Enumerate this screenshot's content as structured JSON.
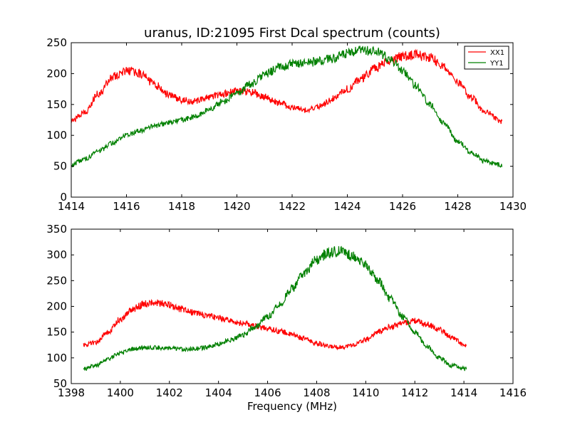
{
  "chart_data": [
    {
      "type": "line",
      "title": "uranus, ID:21095 First Dcal spectrum (counts)",
      "xlabel": "",
      "ylabel": "",
      "xlim": [
        1414,
        1430
      ],
      "ylim": [
        0,
        250
      ],
      "xticks": [
        1414,
        1416,
        1418,
        1420,
        1422,
        1424,
        1426,
        1428,
        1430
      ],
      "yticks": [
        0,
        50,
        100,
        150,
        200,
        250
      ],
      "grid": false,
      "legend": "top-right",
      "series": [
        {
          "name": "XX1",
          "color": "#ff0000",
          "x": [
            1414.0,
            1414.5,
            1415.0,
            1415.5,
            1416.0,
            1416.5,
            1417.0,
            1417.5,
            1418.0,
            1418.5,
            1419.0,
            1419.5,
            1420.0,
            1420.5,
            1421.0,
            1421.5,
            1422.0,
            1422.5,
            1423.0,
            1423.5,
            1424.0,
            1424.5,
            1425.0,
            1425.5,
            1426.0,
            1426.5,
            1427.0,
            1427.5,
            1428.0,
            1428.5,
            1429.0,
            1429.6
          ],
          "values": [
            123,
            138,
            168,
            195,
            205,
            200,
            183,
            167,
            157,
            155,
            162,
            167,
            172,
            170,
            162,
            153,
            145,
            141,
            148,
            160,
            175,
            192,
            208,
            220,
            228,
            230,
            225,
            212,
            185,
            160,
            138,
            122
          ]
        },
        {
          "name": "YY1",
          "color": "#008000",
          "x": [
            1414.0,
            1414.5,
            1415.0,
            1415.5,
            1416.0,
            1416.5,
            1417.0,
            1417.5,
            1418.0,
            1418.5,
            1419.0,
            1419.5,
            1420.0,
            1420.5,
            1421.0,
            1421.5,
            1422.0,
            1422.5,
            1423.0,
            1423.5,
            1424.0,
            1424.5,
            1425.0,
            1425.5,
            1426.0,
            1426.5,
            1427.0,
            1427.5,
            1428.0,
            1428.5,
            1429.0,
            1429.6
          ],
          "values": [
            52,
            62,
            75,
            88,
            100,
            108,
            115,
            120,
            125,
            130,
            142,
            155,
            168,
            183,
            198,
            210,
            215,
            218,
            220,
            225,
            232,
            237,
            236,
            225,
            205,
            180,
            150,
            120,
            90,
            72,
            58,
            52
          ]
        }
      ]
    },
    {
      "type": "line",
      "title": "",
      "xlabel": "Frequency (MHz)",
      "ylabel": "",
      "xlim": [
        1398,
        1416
      ],
      "ylim": [
        50,
        350
      ],
      "xticks": [
        1398,
        1400,
        1402,
        1404,
        1406,
        1408,
        1410,
        1412,
        1414,
        1416
      ],
      "yticks": [
        50,
        100,
        150,
        200,
        250,
        300,
        350
      ],
      "grid": false,
      "series": [
        {
          "color": "#ff0000",
          "x": [
            1398.5,
            1399.0,
            1399.5,
            1400.0,
            1400.5,
            1401.0,
            1401.5,
            1402.0,
            1402.5,
            1403.0,
            1403.5,
            1404.0,
            1404.5,
            1405.0,
            1405.5,
            1406.0,
            1406.5,
            1407.0,
            1407.5,
            1408.0,
            1408.5,
            1409.0,
            1409.5,
            1410.0,
            1410.5,
            1411.0,
            1411.5,
            1412.0,
            1412.5,
            1413.0,
            1413.5,
            1414.1
          ],
          "values": [
            125,
            130,
            150,
            175,
            195,
            205,
            207,
            202,
            195,
            188,
            182,
            177,
            172,
            167,
            162,
            157,
            152,
            145,
            137,
            128,
            122,
            121,
            125,
            135,
            150,
            160,
            168,
            172,
            165,
            155,
            140,
            122
          ]
        },
        {
          "color": "#008000",
          "x": [
            1398.5,
            1399.0,
            1399.5,
            1400.0,
            1400.5,
            1401.0,
            1401.5,
            1402.0,
            1402.5,
            1403.0,
            1403.5,
            1404.0,
            1404.5,
            1405.0,
            1405.5,
            1406.0,
            1406.5,
            1407.0,
            1407.5,
            1408.0,
            1408.5,
            1409.0,
            1409.5,
            1410.0,
            1410.5,
            1411.0,
            1411.5,
            1412.0,
            1412.5,
            1413.0,
            1413.5,
            1414.1
          ],
          "values": [
            78,
            85,
            98,
            110,
            117,
            120,
            120,
            118,
            117,
            117,
            120,
            127,
            135,
            145,
            160,
            180,
            205,
            235,
            265,
            290,
            305,
            307,
            298,
            280,
            250,
            215,
            180,
            150,
            122,
            100,
            85,
            78
          ]
        }
      ]
    }
  ]
}
